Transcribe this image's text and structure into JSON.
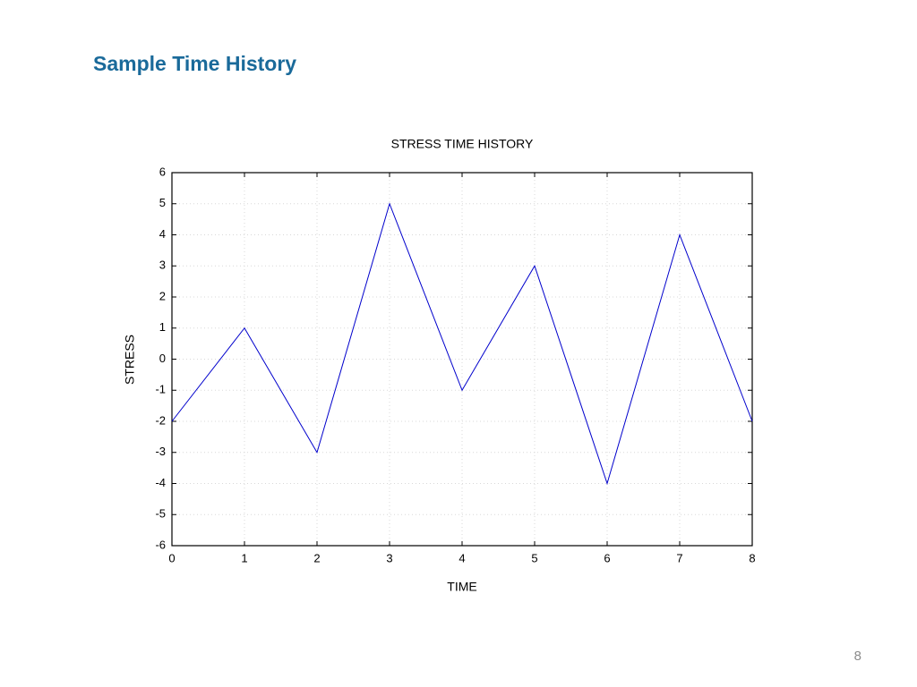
{
  "slide": {
    "title": "Sample Time History",
    "page_number": 8
  },
  "chart_data": {
    "type": "line",
    "title": "STRESS TIME HISTORY",
    "x_label": "TIME",
    "y_label": "STRESS",
    "x": [
      0,
      1,
      2,
      3,
      4,
      5,
      6,
      7,
      8
    ],
    "values": [
      -2,
      1,
      -3,
      5,
      -1,
      3,
      -4,
      4,
      -2
    ],
    "color": "#0000cc",
    "xlim": [
      0,
      8
    ],
    "xticks": [
      0,
      1,
      2,
      3,
      4,
      5,
      6,
      7,
      8
    ],
    "ylim": [
      -6,
      6
    ],
    "yticks": [
      -6,
      -5,
      -4,
      -3,
      -2,
      -1,
      0,
      1,
      2,
      3,
      4,
      5,
      6
    ],
    "grid": true
  }
}
